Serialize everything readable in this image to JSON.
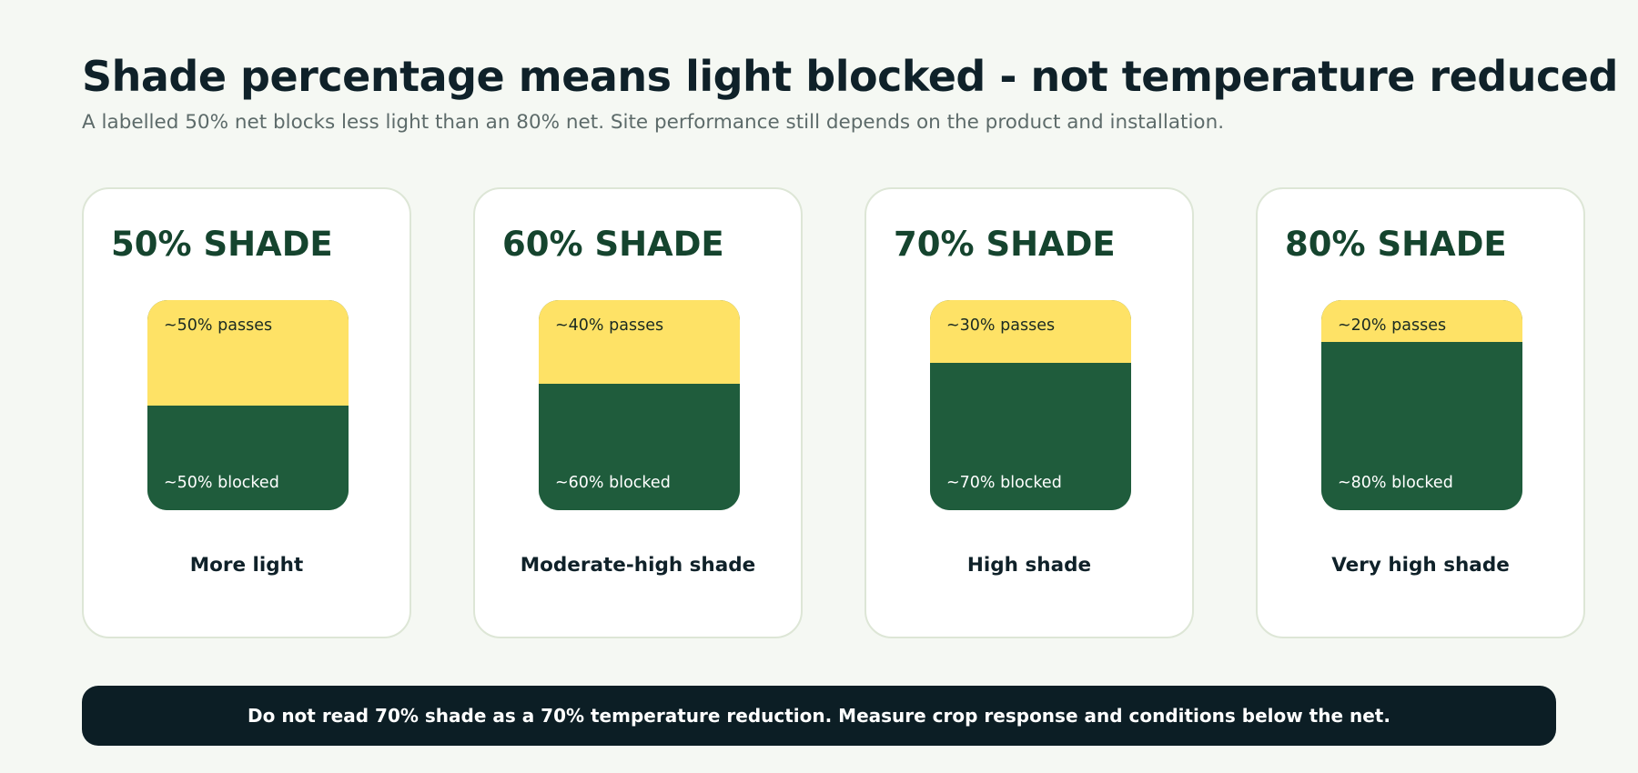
{
  "header": {
    "title": "Shade percentage means light blocked - not temperature reduced",
    "subtitle": "A labelled 50% net blocks less light than an 80% net. Site performance still depends on the product and installation."
  },
  "chart_data": {
    "type": "bar",
    "orientation": "stacked-vertical",
    "categories": [
      "50% SHADE",
      "60% SHADE",
      "70% SHADE",
      "80% SHADE"
    ],
    "series": [
      {
        "name": "passes",
        "values": [
          50,
          40,
          30,
          20
        ],
        "color": "#fee266"
      },
      {
        "name": "blocked",
        "values": [
          50,
          60,
          70,
          80
        ],
        "color": "#1f5c3c"
      }
    ],
    "ylim": [
      0,
      100
    ]
  },
  "cards": [
    {
      "title": "50% SHADE",
      "passes_pct": 50,
      "pass_label": "~50% passes",
      "block_label": "~50% blocked",
      "caption": "More light"
    },
    {
      "title": "60% SHADE",
      "passes_pct": 40,
      "pass_label": "~40% passes",
      "block_label": "~60% blocked",
      "caption": "Moderate-high shade"
    },
    {
      "title": "70% SHADE",
      "passes_pct": 30,
      "pass_label": "~30% passes",
      "block_label": "~70% blocked",
      "caption": "High shade"
    },
    {
      "title": "80% SHADE",
      "passes_pct": 20,
      "pass_label": "~20% passes",
      "block_label": "~80% blocked",
      "caption": "Very high shade"
    }
  ],
  "colors": {
    "passes": "#fee266",
    "blocked": "#1f5c3c",
    "note_background": "#0c1e25"
  },
  "note": {
    "text": "Do not read 70% shade as a 70% temperature reduction. Measure crop response and conditions below the net."
  }
}
